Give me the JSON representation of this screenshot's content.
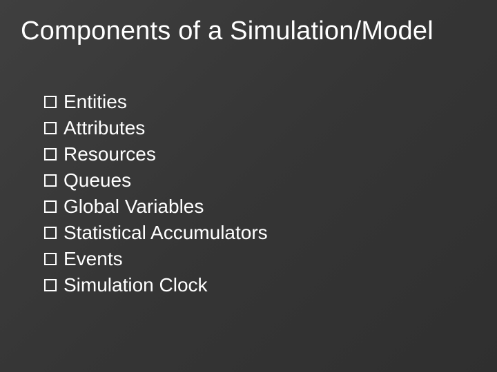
{
  "slide": {
    "title": "Components of a Simulation/Model",
    "background_gradient": [
      "#3f3f3f",
      "#353535",
      "#2f2f2f"
    ],
    "title_fontsize": 38,
    "title_color": "#ffffff",
    "bullet_style": "hollow-square",
    "bullet_border_color": "#ffffff",
    "item_fontsize": 28,
    "item_color": "#ffffff",
    "items": [
      "Entities",
      "Attributes",
      "Resources",
      "Queues",
      "Global Variables",
      "Statistical Accumulators",
      "Events",
      "Simulation Clock"
    ]
  }
}
